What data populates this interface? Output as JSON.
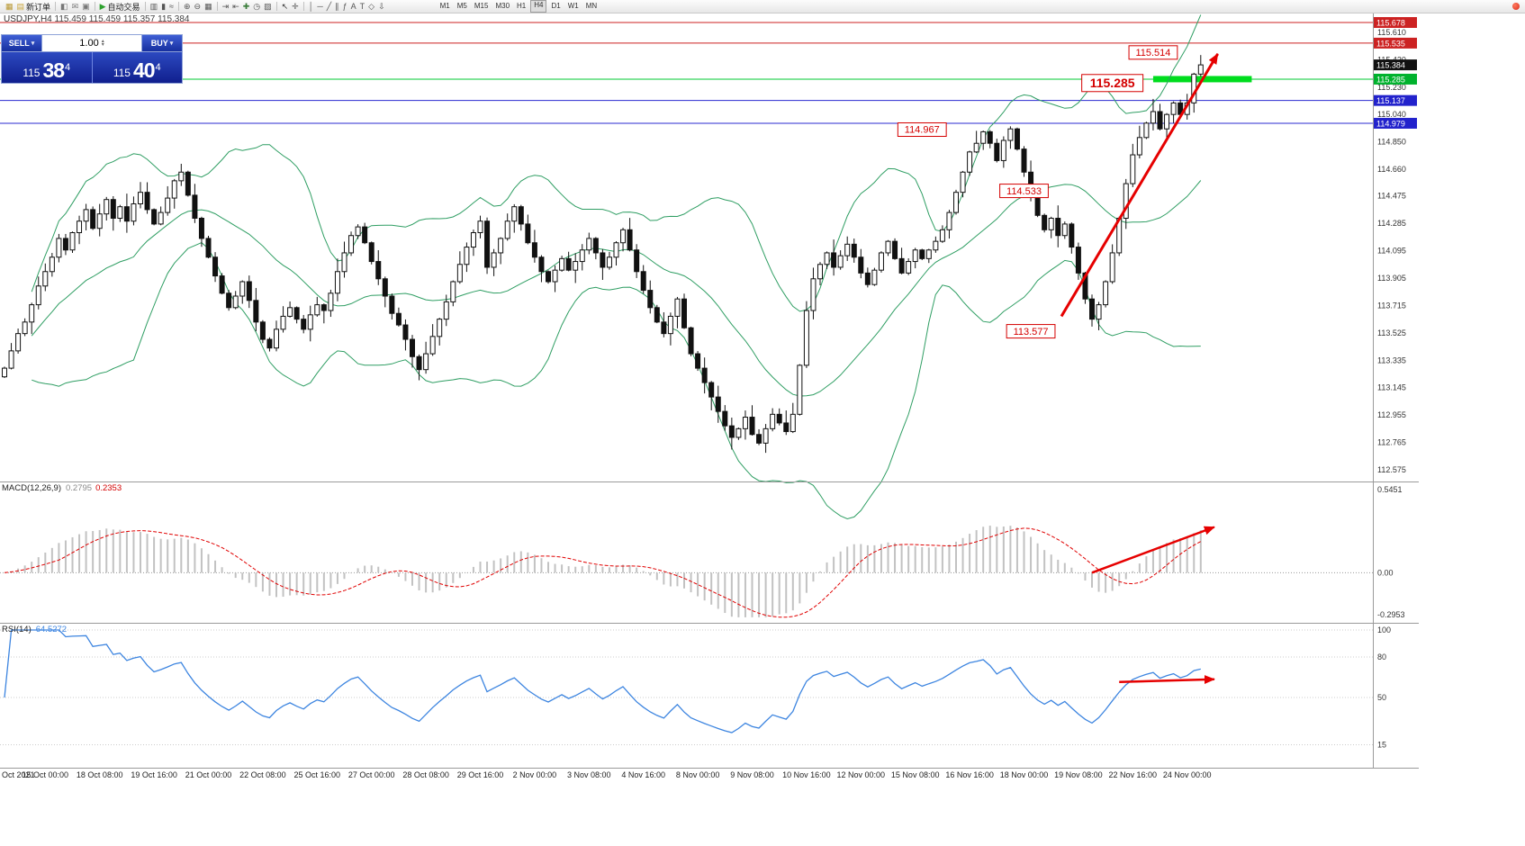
{
  "window": {
    "symbol_title": "USDJPY,H4",
    "quote_line": "115.459 115.459 115.357 115.384"
  },
  "toolbar": {
    "items": [
      {
        "name": "new-chart-icon",
        "glyph": "▦",
        "color": "#b8962e"
      },
      {
        "name": "new-order-button",
        "glyph": "▤",
        "label": "新订单",
        "color": "#caa63d"
      },
      {
        "sep": true
      },
      {
        "name": "profiles-icon",
        "glyph": "◧",
        "color": "#777777"
      },
      {
        "name": "mail-icon",
        "glyph": "✉",
        "color": "#777777"
      },
      {
        "name": "news-icon",
        "glyph": "▣",
        "color": "#777777"
      },
      {
        "sep": true
      },
      {
        "name": "autotrading-button",
        "glyph": "▶",
        "label": "自动交易",
        "color": "#2da12d"
      },
      {
        "sep": true
      },
      {
        "name": "bar-chart-icon",
        "glyph": "▥",
        "color": "#555555"
      },
      {
        "name": "candlestick-chart-icon",
        "glyph": "▮",
        "color": "#555555"
      },
      {
        "name": "line-chart-icon",
        "glyph": "≈",
        "color": "#555555"
      },
      {
        "sep": true
      },
      {
        "name": "zoom-in-icon",
        "glyph": "⊕",
        "color": "#555555"
      },
      {
        "name": "zoom-out-icon",
        "glyph": "⊖",
        "color": "#555555"
      },
      {
        "name": "tile-windows-icon",
        "glyph": "▦",
        "color": "#555555"
      },
      {
        "sep": true
      },
      {
        "name": "auto-scroll-icon",
        "glyph": "⇥",
        "color": "#555555"
      },
      {
        "name": "chart-shift-icon",
        "glyph": "⇤",
        "color": "#555555"
      },
      {
        "name": "indicators-icon",
        "glyph": "✚",
        "color": "#3a7d3a"
      },
      {
        "name": "periods-icon",
        "glyph": "◷",
        "color": "#555555"
      },
      {
        "name": "templates-icon",
        "glyph": "▨",
        "color": "#555555"
      },
      {
        "sep": true
      },
      {
        "name": "cursor-icon",
        "glyph": "↖",
        "color": "#333333"
      },
      {
        "name": "crosshair-icon",
        "glyph": "✛",
        "color": "#555555"
      },
      {
        "sep": true
      },
      {
        "name": "vertical-line-icon",
        "glyph": "│",
        "color": "#555555"
      },
      {
        "name": "horizontal-line-icon",
        "glyph": "─",
        "color": "#555555"
      },
      {
        "name": "trendline-icon",
        "glyph": "╱",
        "color": "#555555"
      },
      {
        "name": "equidistant-channel-icon",
        "glyph": "∥",
        "color": "#555555"
      },
      {
        "name": "fibonacci-icon",
        "glyph": "ƒ",
        "color": "#555555"
      },
      {
        "name": "text-icon",
        "glyph": "A",
        "color": "#555555"
      },
      {
        "name": "text-label-icon",
        "glyph": "T",
        "color": "#555555"
      },
      {
        "name": "shapes-icon",
        "glyph": "◇",
        "color": "#555555"
      },
      {
        "name": "arrows-tool-icon",
        "glyph": "⇩",
        "color": "#555555"
      },
      {
        "spacer": 55
      }
    ],
    "timeframes": [
      "M1",
      "M5",
      "M15",
      "M30",
      "H1",
      "H4",
      "D1",
      "W1",
      "MN"
    ],
    "active_timeframe": "H4"
  },
  "trade_panel": {
    "sell_label": "SELL",
    "buy_label": "BUY",
    "volume": "1.00",
    "sell_price": {
      "big": "115",
      "main": "38",
      "sup": "4"
    },
    "buy_price": {
      "big": "115",
      "main": "40",
      "sup": "4"
    }
  },
  "chart_data": {
    "type": "candlestick",
    "symbol": "USDJPY",
    "period": "H4",
    "price_range": [
      112.575,
      115.678
    ],
    "closes": [
      113.28,
      113.4,
      113.52,
      113.6,
      113.72,
      113.85,
      113.95,
      114.05,
      114.18,
      114.1,
      114.22,
      114.3,
      114.38,
      114.25,
      114.35,
      114.45,
      114.32,
      114.4,
      114.3,
      114.42,
      114.5,
      114.38,
      114.28,
      114.36,
      114.46,
      114.58,
      114.64,
      114.48,
      114.32,
      114.18,
      114.05,
      113.92,
      113.8,
      113.7,
      113.78,
      113.88,
      113.75,
      113.6,
      113.48,
      113.42,
      113.55,
      113.64,
      113.7,
      113.62,
      113.55,
      113.65,
      113.72,
      113.68,
      113.8,
      113.95,
      114.08,
      114.2,
      114.26,
      114.15,
      114.02,
      113.9,
      113.78,
      113.66,
      113.58,
      113.48,
      113.36,
      113.27,
      113.38,
      113.5,
      113.62,
      113.74,
      113.88,
      114.0,
      114.12,
      114.22,
      114.3,
      113.98,
      114.08,
      114.18,
      114.3,
      114.4,
      114.28,
      114.15,
      114.05,
      113.95,
      113.88,
      113.96,
      114.04,
      113.96,
      114.02,
      114.1,
      114.18,
      114.08,
      113.98,
      114.05,
      114.15,
      114.24,
      114.1,
      113.95,
      113.82,
      113.7,
      113.6,
      113.52,
      113.64,
      113.76,
      113.56,
      113.38,
      113.28,
      113.18,
      113.08,
      112.98,
      112.88,
      112.8,
      112.86,
      112.94,
      112.82,
      112.76,
      112.86,
      112.96,
      112.9,
      112.84,
      112.96,
      113.3,
      113.68,
      113.9,
      114.0,
      114.08,
      113.98,
      114.06,
      114.14,
      114.05,
      113.94,
      113.86,
      113.96,
      114.08,
      114.16,
      114.04,
      113.94,
      114.02,
      114.1,
      114.04,
      114.1,
      114.16,
      114.24,
      114.36,
      114.5,
      114.64,
      114.78,
      114.84,
      114.92,
      114.84,
      114.72,
      114.86,
      114.94,
      114.8,
      114.64,
      114.48,
      114.34,
      114.24,
      114.32,
      114.2,
      114.28,
      114.12,
      113.94,
      113.76,
      113.62,
      113.72,
      113.88,
      114.08,
      114.32,
      114.56,
      114.76,
      114.88,
      114.98,
      115.06,
      114.94,
      115.04,
      115.12,
      115.04,
      115.12,
      115.32,
      115.384
    ],
    "y_axis": [
      115.61,
      115.42,
      115.23,
      115.04,
      114.85,
      114.66,
      114.475,
      114.285,
      114.095,
      113.905,
      113.715,
      113.525,
      113.335,
      113.145,
      112.955,
      112.765,
      112.575
    ],
    "x_ticks": [
      {
        "label": "Oct 2021",
        "bar": 0
      },
      {
        "label": "15 Oct 00:00",
        "bar": 6
      },
      {
        "label": "18 Oct 08:00",
        "bar": 14
      },
      {
        "label": "19 Oct 16:00",
        "bar": 22
      },
      {
        "label": "21 Oct 00:00",
        "bar": 30
      },
      {
        "label": "22 Oct 08:00",
        "bar": 38
      },
      {
        "label": "25 Oct 16:00",
        "bar": 46
      },
      {
        "label": "27 Oct 00:00",
        "bar": 54
      },
      {
        "label": "28 Oct 08:00",
        "bar": 62
      },
      {
        "label": "29 Oct 16:00",
        "bar": 70
      },
      {
        "label": "2 Nov 00:00",
        "bar": 78
      },
      {
        "label": "3 Nov 08:00",
        "bar": 86
      },
      {
        "label": "4 Nov 16:00",
        "bar": 94
      },
      {
        "label": "8 Nov 00:00",
        "bar": 102
      },
      {
        "label": "9 Nov 08:00",
        "bar": 110
      },
      {
        "label": "10 Nov 16:00",
        "bar": 118
      },
      {
        "label": "12 Nov 00:00",
        "bar": 126
      },
      {
        "label": "15 Nov 08:00",
        "bar": 134
      },
      {
        "label": "16 Nov 16:00",
        "bar": 142
      },
      {
        "label": "18 Nov 00:00",
        "bar": 150
      },
      {
        "label": "19 Nov 08:00",
        "bar": 158
      },
      {
        "label": "22 Nov 16:00",
        "bar": 166
      },
      {
        "label": "24 Nov 00:00",
        "bar": 174
      }
    ],
    "indicators": {
      "bollinger": {
        "period": 20,
        "deviation": 2,
        "color": "#2f9e63"
      },
      "macd": {
        "title": "MACD(12,26,9)",
        "main_text": "0.2795",
        "signal_text": "0.2353",
        "fast": 12,
        "slow": 26,
        "signal": 9,
        "axis_max": 0.5451,
        "axis_min": -0.2953,
        "axis_labels": [
          {
            "text": "0.5451",
            "value": 0.5451
          },
          {
            "text": "0.00",
            "value": 0
          },
          {
            "text": "-0.2953",
            "value": -0.2953
          }
        ]
      },
      "rsi": {
        "title": "RSI(14)",
        "value_text": "64.5272",
        "period": 14,
        "levels": [
          100,
          80,
          50,
          15
        ]
      }
    }
  },
  "annotations": {
    "hlines": [
      {
        "price": 115.678,
        "color": "#cc2222",
        "width": 1
      },
      {
        "price": 115.535,
        "color": "#cc2222",
        "width": 1
      },
      {
        "price": 115.285,
        "color": "#00c832",
        "width": 1
      },
      {
        "price": 115.137,
        "color": "#2a2ad0",
        "width": 1
      },
      {
        "price": 114.979,
        "color": "#2a2ad0",
        "width": 1
      }
    ],
    "green_band": {
      "price": 115.285,
      "bar_start": 169,
      "bar_end": 183.5,
      "thickness": 7,
      "color": "#00dd1e"
    },
    "badges": [
      {
        "value": "115.678",
        "price": 115.678,
        "color": "#cc2222"
      },
      {
        "value": "115.535",
        "price": 115.535,
        "color": "#cc2222"
      },
      {
        "value": "115.384",
        "price": 115.384,
        "color": "#111111"
      },
      {
        "value": "115.285",
        "price": 115.285,
        "color": "#00b22d"
      },
      {
        "value": "115.137",
        "price": 115.137,
        "color": "#2222cc"
      },
      {
        "value": "114.979",
        "price": 114.979,
        "color": "#2222cc"
      }
    ],
    "callouts": [
      {
        "text": "115.514",
        "bar": 169,
        "price": 115.47,
        "big": false
      },
      {
        "text": "115.285",
        "bar": 163,
        "price": 115.258,
        "big": true
      },
      {
        "text": "114.967",
        "bar": 135,
        "price": 114.935,
        "big": false
      },
      {
        "text": "114.533",
        "bar": 150,
        "price": 114.51,
        "big": false
      },
      {
        "text": "113.577",
        "bar": 151,
        "price": 113.536,
        "big": false
      }
    ],
    "arrows": [
      {
        "panel": "main",
        "bar1": 155.5,
        "v1": 113.64,
        "bar2": 178.5,
        "v2": 115.46,
        "width": 3
      },
      {
        "panel": "macd",
        "bar1": 160,
        "v1": 0.0,
        "bar2": 178,
        "v2": 0.29,
        "width": 2.5
      },
      {
        "panel": "rsi",
        "bar1": 164,
        "v1": 61.5,
        "bar2": 178,
        "v2": 63.5,
        "width": 2.5
      }
    ]
  }
}
